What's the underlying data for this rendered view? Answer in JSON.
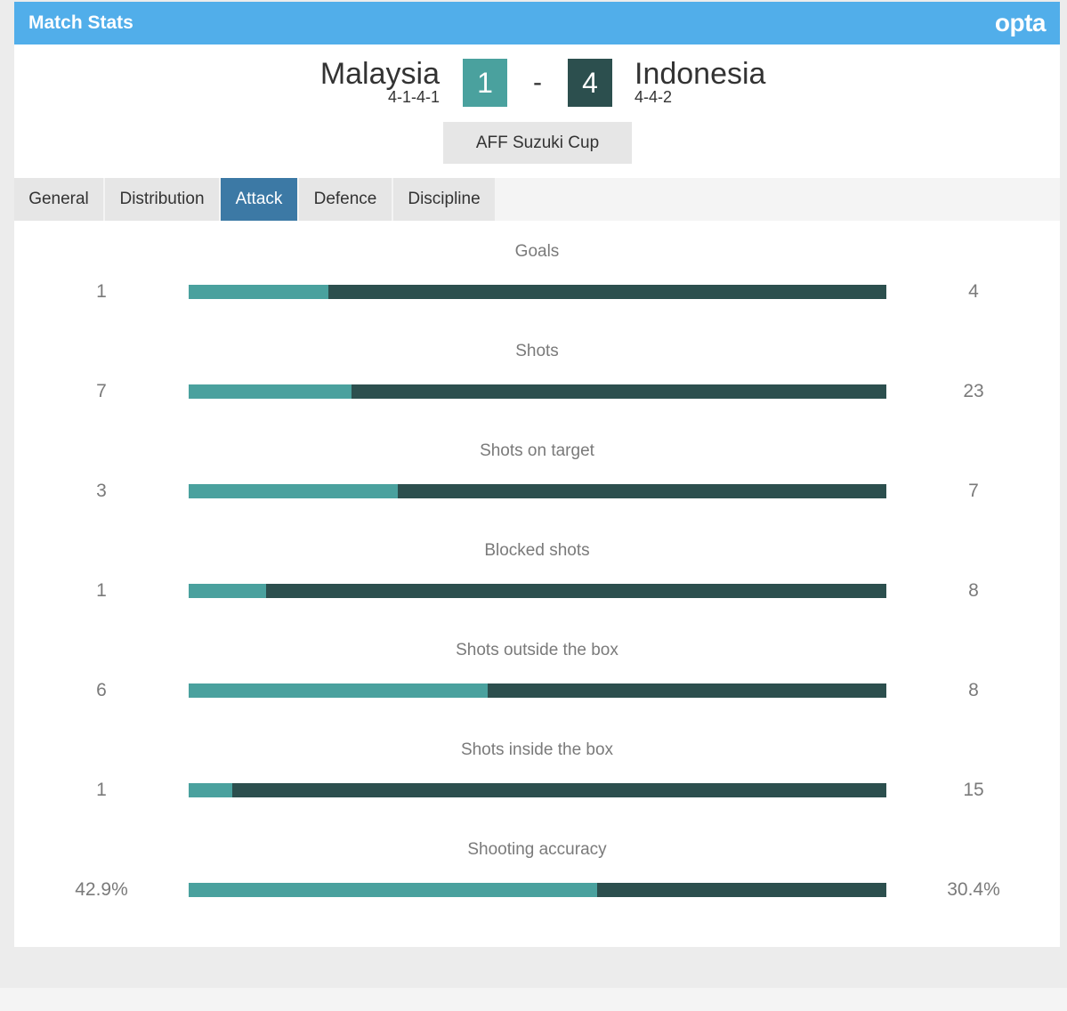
{
  "header": {
    "title": "Match Stats",
    "logo": "opta",
    "background": "#51aeea"
  },
  "match": {
    "home": {
      "name": "Malaysia",
      "formation": "4-1-4-1",
      "score": "1",
      "color": "#4aa19e"
    },
    "away": {
      "name": "Indonesia",
      "formation": "4-4-2",
      "score": "4",
      "color": "#2c4f4e"
    },
    "separator": "-",
    "competition": "AFF Suzuki Cup"
  },
  "tabs": [
    {
      "label": "General",
      "active": false
    },
    {
      "label": "Distribution",
      "active": false
    },
    {
      "label": "Attack",
      "active": true
    },
    {
      "label": "Defence",
      "active": false
    },
    {
      "label": "Discipline",
      "active": false
    }
  ],
  "stats": [
    {
      "label": "Goals",
      "home": "1",
      "away": "4",
      "home_share": 0.2
    },
    {
      "label": "Shots",
      "home": "7",
      "away": "23",
      "home_share": 0.2333
    },
    {
      "label": "Shots on target",
      "home": "3",
      "away": "7",
      "home_share": 0.3
    },
    {
      "label": "Blocked shots",
      "home": "1",
      "away": "8",
      "home_share": 0.1111
    },
    {
      "label": "Shots outside the box",
      "home": "6",
      "away": "8",
      "home_share": 0.4286
    },
    {
      "label": "Shots inside the box",
      "home": "1",
      "away": "15",
      "home_share": 0.0625
    },
    {
      "label": "Shooting accuracy",
      "home": "42.9%",
      "away": "30.4%",
      "home_share": 0.5853
    }
  ]
}
